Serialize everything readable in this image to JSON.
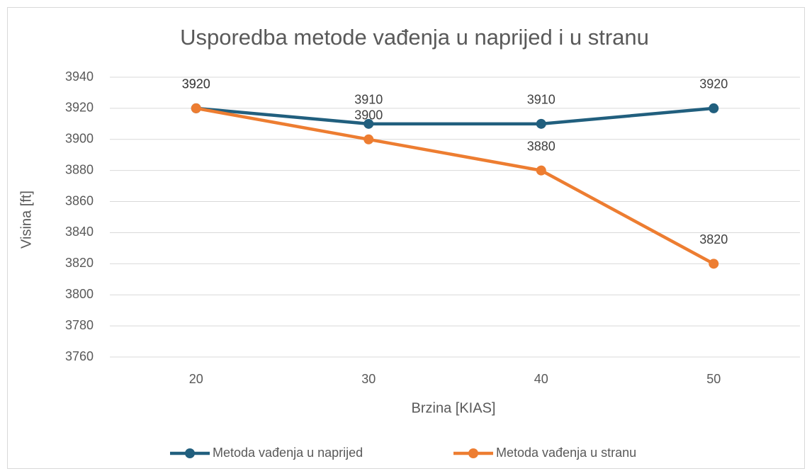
{
  "chart_data": {
    "type": "line",
    "title": "Usporedba metode vađenja u naprijed i u stranu",
    "x_label": "Brzina [KIAS]",
    "y_label": "Visina [ft]",
    "categories": [
      "20",
      "30",
      "40",
      "50"
    ],
    "series": [
      {
        "name": "Metoda vađenja u naprijed",
        "color": "#215f7e",
        "values": [
          3920,
          3910,
          3910,
          3920
        ]
      },
      {
        "name": "Metoda vađenja u stranu",
        "color": "#ed7d31",
        "values": [
          3920,
          3900,
          3880,
          3820
        ]
      }
    ],
    "ylim": [
      3760,
      3940
    ],
    "yticks": [
      3760,
      3780,
      3800,
      3820,
      3840,
      3860,
      3880,
      3900,
      3920,
      3940
    ],
    "grid": true,
    "legend": "bottom",
    "data_labels": true
  }
}
